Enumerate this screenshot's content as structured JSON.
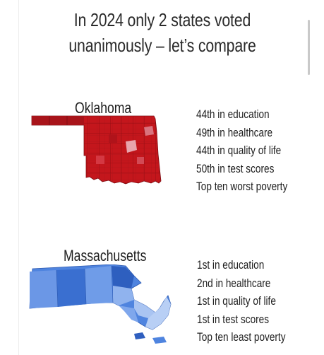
{
  "title": {
    "line1": "In 2024 only 2 states voted",
    "line2": "unanimously – let’s compare"
  },
  "states": [
    {
      "name": "Oklahoma",
      "map_color": "#c4161c",
      "stats": [
        "44th in education",
        "49th in healthcare",
        "44th in quality of life",
        "50th in test scores",
        "Top ten worst poverty"
      ]
    },
    {
      "name": "Massachusetts",
      "map_color": "#2f6fd6",
      "stats": [
        "1st in education",
        "2nd in healthcare",
        "1st in quality of life",
        "1st in test scores",
        "Top ten least poverty"
      ]
    }
  ]
}
